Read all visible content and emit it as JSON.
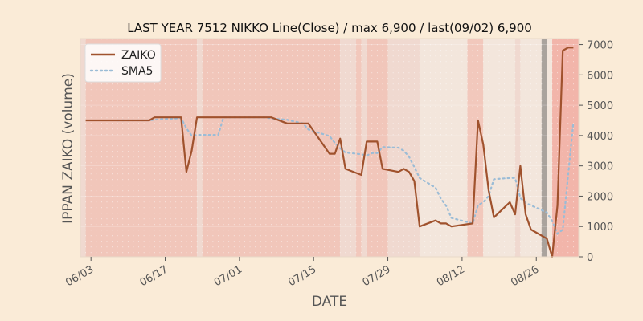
{
  "chart_data": {
    "type": "line",
    "title": "LAST YEAR 7512 NIKKO Line(Close) / max 6,900 / last(09/02) 6,900",
    "xlabel": "DATE",
    "ylabel": "IPPAN ZAIKO (volume)",
    "x_range": [
      "2023-06-01",
      "2023-09-03"
    ],
    "ylim": [
      0,
      7200
    ],
    "x_ticks": [
      "06/03",
      "06/17",
      "07/01",
      "07/15",
      "07/29",
      "08/12",
      "08/26"
    ],
    "y_ticks": [
      "0",
      "1000",
      "2000",
      "3000",
      "4000",
      "5000",
      "6000",
      "7000"
    ],
    "grid": true,
    "legend_position": "upper-left",
    "series": [
      {
        "name": "ZAIKO",
        "color": "#a0522d",
        "style": "solid",
        "x": [
          "2023-06-02",
          "2023-06-05",
          "2023-06-06",
          "2023-06-07",
          "2023-06-08",
          "2023-06-09",
          "2023-06-12",
          "2023-06-13",
          "2023-06-14",
          "2023-06-15",
          "2023-06-16",
          "2023-06-19",
          "2023-06-20",
          "2023-06-21",
          "2023-06-22",
          "2023-06-23",
          "2023-06-26",
          "2023-06-27",
          "2023-06-28",
          "2023-06-29",
          "2023-06-30",
          "2023-07-03",
          "2023-07-04",
          "2023-07-05",
          "2023-07-06",
          "2023-07-07",
          "2023-07-10",
          "2023-07-11",
          "2023-07-12",
          "2023-07-13",
          "2023-07-14",
          "2023-07-18",
          "2023-07-19",
          "2023-07-20",
          "2023-07-21",
          "2023-07-24",
          "2023-07-25",
          "2023-07-26",
          "2023-07-27",
          "2023-07-28",
          "2023-07-31",
          "2023-08-01",
          "2023-08-02",
          "2023-08-03",
          "2023-08-04",
          "2023-08-07",
          "2023-08-08",
          "2023-08-09",
          "2023-08-10",
          "2023-08-14",
          "2023-08-15",
          "2023-08-16",
          "2023-08-17",
          "2023-08-18",
          "2023-08-21",
          "2023-08-22",
          "2023-08-23",
          "2023-08-24",
          "2023-08-25",
          "2023-08-28",
          "2023-08-29",
          "2023-08-30",
          "2023-08-31",
          "2023-09-01",
          "2023-09-02"
        ],
        "y": [
          4500,
          4500,
          4500,
          4500,
          4500,
          4500,
          4500,
          4500,
          4500,
          4600,
          4600,
          4600,
          4600,
          2800,
          3500,
          4600,
          4600,
          4600,
          4600,
          4600,
          4600,
          4600,
          4600,
          4600,
          4600,
          4600,
          4400,
          4400,
          4400,
          4400,
          4400,
          3400,
          3400,
          3900,
          2900,
          2700,
          3800,
          3800,
          3800,
          2900,
          2800,
          2900,
          2800,
          2500,
          1000,
          1200,
          1100,
          1100,
          1000,
          1100,
          4500,
          3700,
          2200,
          1300,
          1800,
          1400,
          3000,
          1400,
          900,
          600,
          0,
          1700,
          6800,
          6900,
          6900
        ]
      },
      {
        "name": "SMA5",
        "color": "#9bbcd6",
        "style": "dotted",
        "x": [
          "2023-06-02",
          "2023-06-05",
          "2023-06-06",
          "2023-06-07",
          "2023-06-08",
          "2023-06-09",
          "2023-06-12",
          "2023-06-13",
          "2023-06-14",
          "2023-06-15",
          "2023-06-16",
          "2023-06-19",
          "2023-06-20",
          "2023-06-21",
          "2023-06-22",
          "2023-06-23",
          "2023-06-26",
          "2023-06-27",
          "2023-06-28",
          "2023-06-29",
          "2023-06-30",
          "2023-07-03",
          "2023-07-04",
          "2023-07-05",
          "2023-07-06",
          "2023-07-07",
          "2023-07-10",
          "2023-07-11",
          "2023-07-12",
          "2023-07-13",
          "2023-07-14",
          "2023-07-18",
          "2023-07-19",
          "2023-07-20",
          "2023-07-21",
          "2023-07-24",
          "2023-07-25",
          "2023-07-26",
          "2023-07-27",
          "2023-07-28",
          "2023-07-31",
          "2023-08-01",
          "2023-08-02",
          "2023-08-03",
          "2023-08-04",
          "2023-08-07",
          "2023-08-08",
          "2023-08-09",
          "2023-08-10",
          "2023-08-14",
          "2023-08-15",
          "2023-08-16",
          "2023-08-17",
          "2023-08-18",
          "2023-08-21",
          "2023-08-22",
          "2023-08-23",
          "2023-08-24",
          "2023-08-25",
          "2023-08-28",
          "2023-08-29",
          "2023-08-30",
          "2023-08-31",
          "2023-09-01",
          "2023-09-02"
        ],
        "y": [
          null,
          null,
          null,
          null,
          4500,
          4500,
          4500,
          4500,
          4500,
          4520,
          4540,
          4560,
          4580,
          4240,
          4000,
          4020,
          4020,
          4020,
          4600,
          4600,
          4600,
          4600,
          4600,
          4600,
          4600,
          4560,
          4520,
          4480,
          4440,
          4400,
          4200,
          3980,
          3760,
          3580,
          3440,
          3380,
          3340,
          3420,
          3420,
          3620,
          3600,
          3500,
          3300,
          2960,
          2600,
          2280,
          1920,
          1680,
          1280,
          1100,
          1700,
          1800,
          2000,
          2560,
          2600,
          2600,
          1940,
          1780,
          1700,
          1460,
          1180,
          760,
          900,
          2680,
          4440
        ]
      }
    ],
    "shading": [
      {
        "from": "2023-06-01",
        "to": "2023-06-02",
        "level": "pale"
      },
      {
        "from": "2023-06-02",
        "to": "2023-06-23",
        "level": "medium"
      },
      {
        "from": "2023-06-23",
        "to": "2023-06-24",
        "level": "pale"
      },
      {
        "from": "2023-06-24",
        "to": "2023-07-20",
        "level": "medium"
      },
      {
        "from": "2023-07-20",
        "to": "2023-07-23",
        "level": "pale"
      },
      {
        "from": "2023-07-23",
        "to": "2023-07-24",
        "level": "light"
      },
      {
        "from": "2023-07-24",
        "to": "2023-07-25",
        "level": "pale"
      },
      {
        "from": "2023-07-25",
        "to": "2023-07-29",
        "level": "medium"
      },
      {
        "from": "2023-07-29",
        "to": "2023-08-04",
        "level": "pale"
      },
      {
        "from": "2023-08-04",
        "to": "2023-08-13",
        "level": "faint"
      },
      {
        "from": "2023-08-13",
        "to": "2023-08-16",
        "level": "light"
      },
      {
        "from": "2023-08-16",
        "to": "2023-08-22",
        "level": "faint"
      },
      {
        "from": "2023-08-22",
        "to": "2023-08-23",
        "level": "pale"
      },
      {
        "from": "2023-08-23",
        "to": "2023-08-27",
        "level": "faint"
      },
      {
        "from": "2023-08-27",
        "to": "2023-08-28",
        "level": "gray"
      },
      {
        "from": "2023-08-28",
        "to": "2023-08-29",
        "level": "faint"
      },
      {
        "from": "2023-08-29",
        "to": "2023-09-03",
        "level": "strong"
      }
    ],
    "shade_colors": {
      "faint": "#f3e6dc",
      "pale": "#f0d9d0",
      "light": "#f2c8bc",
      "medium": "#f1c6ba",
      "strong": "#f2b5aa",
      "gray": "#aaa39d"
    },
    "colors": {
      "background": "#faebd7",
      "grid": "#ffffff",
      "text": "#555555",
      "title": "#111111"
    }
  }
}
